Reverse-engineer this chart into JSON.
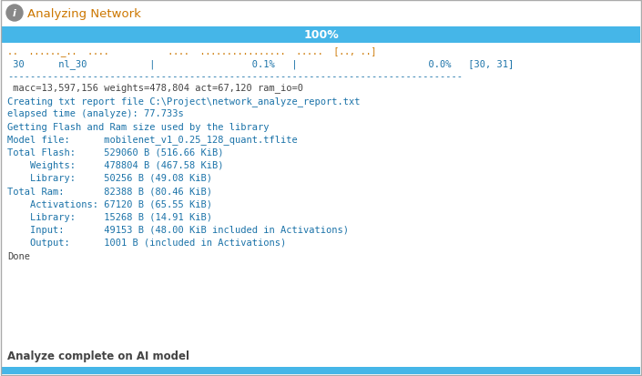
{
  "title": "Analyzing Network",
  "progress_text": "100%",
  "progress_bar_color": "#45b6e8",
  "bg_color": "#ffffff",
  "border_color": "#aaaaaa",
  "table_header": "..   ......_..   ....              ....   ................   .....   [.., ..]",
  "table_row": " 30      nl_30           |                 0.1%   |                       0.0%   [30, 31]",
  "separator": "--------------------------------------------------------------------------------",
  "body_lines": [
    " macc=13,597,156 weights=478,804 act=67,120 ram_io=0",
    "Creating txt report file C:\\Project\\network_analyze_report.txt",
    "elapsed time (analyze): 77.733s",
    "Getting Flash and Ram size used by the library",
    "Model file:      mobilenet_v1_0.25_128_quant.tflite",
    "Total Flash:     529060 B (516.66 KiB)",
    "    Weights:     478804 B (467.58 KiB)",
    "    Library:     50256 B (49.08 KiB)",
    "Total Ram:       82388 B (80.46 KiB)",
    "    Activations: 67120 B (65.55 KiB)",
    "    Library:     15268 B (14.91 KiB)",
    "    Input:       49153 B (48.00 KiB included in Activations)",
    "    Output:      1001 B (included in Activations)",
    "Done"
  ],
  "body_line_colors": [
    "#444444",
    "#1a72a8",
    "#1a72a8",
    "#1a72a8",
    "#1a72a8",
    "#1a72a8",
    "#1a72a8",
    "#1a72a8",
    "#1a72a8",
    "#1a72a8",
    "#1a72a8",
    "#1a72a8",
    "#1a72a8",
    "#444444"
  ],
  "footer_text": "Analyze complete on AI model",
  "monospace_font": "monospace",
  "code_color": "#1a72a8",
  "header_text_color": "#cc7700",
  "default_text_color": "#444444",
  "icon_color": "#888888",
  "bottom_bar_color": "#45b6e8",
  "title_color": "#cc7700"
}
